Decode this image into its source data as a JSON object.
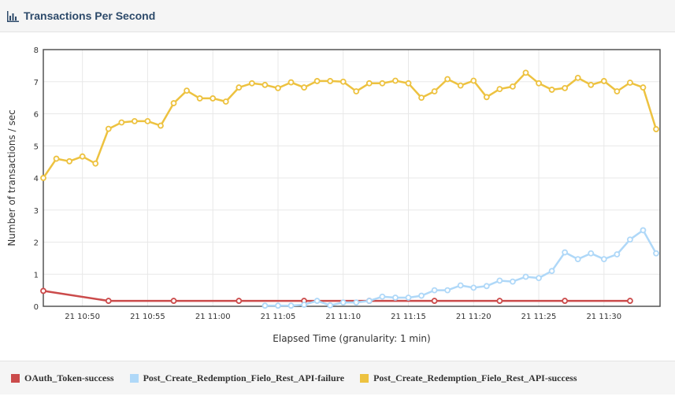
{
  "header": {
    "title": "Transactions Per Second",
    "icon": "bar-chart-icon"
  },
  "colors": {
    "header_title": "#2d4a6a",
    "oauth": "#cb4b4b",
    "failure": "#afd8f8",
    "success": "#edc240"
  },
  "chart_data": {
    "type": "line",
    "title": "Transactions Per Second",
    "xlabel": "Elapsed Time (granularity: 1 min)",
    "ylabel": "Number of transactions / sec",
    "ylim": [
      0,
      8
    ],
    "y_ticks": [
      0,
      1,
      2,
      3,
      4,
      5,
      6,
      7,
      8
    ],
    "x_range_minutes": [
      47,
      81.7
    ],
    "x_ticks": [
      {
        "label": "21 10:50",
        "minute": 50
      },
      {
        "label": "21 10:55",
        "minute": 55
      },
      {
        "label": "21 11:00",
        "minute": 60
      },
      {
        "label": "21 11:05",
        "minute": 65
      },
      {
        "label": "21 11:10",
        "minute": 70
      },
      {
        "label": "21 11:15",
        "minute": 75
      },
      {
        "label": "21 11:20",
        "minute": 80
      },
      {
        "label": "21 11:25",
        "minute": 85
      },
      {
        "label": "21 11:30",
        "minute": 90
      }
    ],
    "grid": true,
    "legend_position": "bottom",
    "series": [
      {
        "name": "OAuth_Token-success",
        "color": "#cb4b4b",
        "points": [
          [
            47.0,
            0.48
          ],
          [
            52.0,
            0.17
          ],
          [
            57.0,
            0.17
          ],
          [
            62.0,
            0.17
          ],
          [
            67.0,
            0.17
          ],
          [
            72.0,
            0.17
          ],
          [
            77.0,
            0.17
          ],
          [
            82.0,
            0.17
          ],
          [
            87.0,
            0.17
          ],
          [
            92.0,
            0.17
          ]
        ]
      },
      {
        "name": "Post_Create_Redemption_Fielo_Rest_API-failure",
        "color": "#afd8f8",
        "points": [
          [
            64.0,
            0.02
          ],
          [
            65.0,
            0.02
          ],
          [
            66.0,
            0.02
          ],
          [
            67.0,
            0.05
          ],
          [
            68.0,
            0.17
          ],
          [
            69.0,
            0.03
          ],
          [
            70.0,
            0.12
          ],
          [
            71.0,
            0.12
          ],
          [
            72.0,
            0.17
          ],
          [
            73.0,
            0.3
          ],
          [
            74.0,
            0.27
          ],
          [
            75.0,
            0.27
          ],
          [
            76.0,
            0.33
          ],
          [
            77.0,
            0.5
          ],
          [
            78.0,
            0.5
          ],
          [
            79.0,
            0.65
          ],
          [
            80.0,
            0.58
          ],
          [
            81.0,
            0.63
          ],
          [
            82.0,
            0.8
          ],
          [
            83.0,
            0.77
          ],
          [
            84.0,
            0.92
          ],
          [
            85.0,
            0.88
          ],
          [
            86.0,
            1.1
          ],
          [
            87.0,
            1.68
          ],
          [
            88.0,
            1.47
          ],
          [
            89.0,
            1.65
          ],
          [
            90.0,
            1.47
          ],
          [
            91.0,
            1.62
          ],
          [
            92.0,
            2.08
          ],
          [
            93.0,
            2.37
          ],
          [
            94.0,
            1.65
          ]
        ]
      },
      {
        "name": "Post_Create_Redemption_Fielo_Rest_API-success",
        "color": "#edc240",
        "points": [
          [
            47.0,
            4.0
          ],
          [
            48.0,
            4.6
          ],
          [
            49.0,
            4.52
          ],
          [
            50.0,
            4.67
          ],
          [
            51.0,
            4.45
          ],
          [
            52.0,
            5.53
          ],
          [
            53.0,
            5.73
          ],
          [
            54.0,
            5.77
          ],
          [
            55.0,
            5.77
          ],
          [
            56.0,
            5.63
          ],
          [
            57.0,
            6.33
          ],
          [
            58.0,
            6.72
          ],
          [
            59.0,
            6.48
          ],
          [
            60.0,
            6.48
          ],
          [
            61.0,
            6.38
          ],
          [
            62.0,
            6.82
          ],
          [
            63.0,
            6.95
          ],
          [
            64.0,
            6.9
          ],
          [
            65.0,
            6.8
          ],
          [
            66.0,
            6.98
          ],
          [
            67.0,
            6.82
          ],
          [
            68.0,
            7.02
          ],
          [
            69.0,
            7.02
          ],
          [
            70.0,
            7.0
          ],
          [
            71.0,
            6.7
          ],
          [
            72.0,
            6.95
          ],
          [
            73.0,
            6.95
          ],
          [
            74.0,
            7.03
          ],
          [
            75.0,
            6.95
          ],
          [
            76.0,
            6.5
          ],
          [
            77.0,
            6.7
          ],
          [
            78.0,
            7.08
          ],
          [
            79.0,
            6.88
          ],
          [
            80.0,
            7.03
          ],
          [
            81.0,
            6.52
          ],
          [
            82.0,
            6.77
          ],
          [
            83.0,
            6.85
          ],
          [
            84.0,
            7.28
          ],
          [
            85.0,
            6.95
          ],
          [
            86.0,
            6.75
          ],
          [
            87.0,
            6.8
          ],
          [
            88.0,
            7.12
          ],
          [
            89.0,
            6.9
          ],
          [
            90.0,
            7.02
          ],
          [
            91.0,
            6.7
          ],
          [
            92.0,
            6.97
          ],
          [
            93.0,
            6.82
          ],
          [
            94.0,
            5.52
          ]
        ]
      }
    ]
  }
}
